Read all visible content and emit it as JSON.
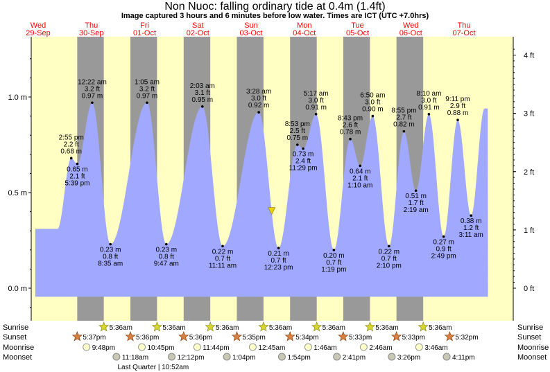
{
  "title": "Non Nuoc: falling  ordinary tide at 0.4m (1.4ft)",
  "subtitle": "Image captured 3 hours and 6 minutes before low water. Times are ICT (UTC +7.0hrs)",
  "colors": {
    "day": "#ffffc4",
    "night": "#999999",
    "tide": "#a0a8ff",
    "date_label": "#ff0000",
    "now_marker": "#e8d000"
  },
  "chart_data": {
    "type": "area",
    "title": "Non Nuoc: falling  ordinary tide at 0.4m (1.4ft)",
    "xlabel": "",
    "ylabel": "",
    "x_unit": "hours since Wed 29-Sep 00:00 ICT",
    "xlim": [
      -2.2,
      204
    ],
    "ylim": [
      -0.05,
      1.28
    ],
    "grid": false,
    "y_ticks_m": [
      {
        "value": 0.0,
        "label": "0.0 m"
      },
      {
        "value": 0.5,
        "label": "0.5 m"
      },
      {
        "value": 1.0,
        "label": "1.0 m"
      }
    ],
    "y_ticks_ft": [
      {
        "value": 0,
        "label": "0 ft"
      },
      {
        "value": 1,
        "label": "1 ft"
      },
      {
        "value": 2,
        "label": "2 ft"
      },
      {
        "value": 3,
        "label": "3 ft"
      },
      {
        "value": 4,
        "label": "4 ft"
      }
    ],
    "days": [
      {
        "hour": 0,
        "day": "Wed",
        "date": "29-Sep"
      },
      {
        "hour": 24,
        "day": "Thu",
        "date": "30-Sep"
      },
      {
        "hour": 48,
        "day": "Fri",
        "date": "01-Oct"
      },
      {
        "hour": 72,
        "day": "Sat",
        "date": "02-Oct"
      },
      {
        "hour": 96,
        "day": "Sun",
        "date": "03-Oct"
      },
      {
        "hour": 120,
        "day": "Mon",
        "date": "04-Oct"
      },
      {
        "hour": 144,
        "day": "Tue",
        "date": "05-Oct"
      },
      {
        "hour": 168,
        "day": "Wed",
        "date": "06-Oct"
      },
      {
        "hour": 192,
        "day": "Thu",
        "date": "07-Oct"
      }
    ],
    "nights": [
      [
        17.62,
        29.6
      ],
      [
        41.6,
        53.6
      ],
      [
        65.6,
        77.6
      ],
      [
        89.58,
        101.6
      ],
      [
        113.57,
        125.6
      ],
      [
        137.55,
        149.6
      ],
      [
        161.55,
        173.6
      ]
    ],
    "extremes": [
      {
        "hour": 14.92,
        "m": 0.68,
        "ft": "2.2 ft",
        "time": "2:55 pm",
        "type": "high",
        "label_side": "above"
      },
      {
        "hour": 17.65,
        "m": 0.65,
        "ft": "2.1 ft",
        "time": "5:39 pm",
        "type": "low",
        "label_side": "below"
      },
      {
        "hour": 24.37,
        "m": 0.97,
        "ft": "3.2 ft",
        "time": "12:22 am",
        "type": "high",
        "label_side": "above"
      },
      {
        "hour": 32.58,
        "m": 0.23,
        "ft": "0.8 ft",
        "time": "8:35 am",
        "type": "low",
        "label_side": "below"
      },
      {
        "hour": 49.08,
        "m": 0.97,
        "ft": "3.2 ft",
        "time": "1:05 am",
        "type": "high",
        "label_side": "above"
      },
      {
        "hour": 57.78,
        "m": 0.23,
        "ft": "0.8 ft",
        "time": "9:47 am",
        "type": "low",
        "label_side": "below"
      },
      {
        "hour": 74.05,
        "m": 0.95,
        "ft": "3.1 ft",
        "time": "2:03 am",
        "type": "high",
        "label_side": "above"
      },
      {
        "hour": 83.18,
        "m": 0.22,
        "ft": "0.7 ft",
        "time": "11:11 am",
        "type": "low",
        "label_side": "below"
      },
      {
        "hour": 99.47,
        "m": 0.92,
        "ft": "3.0 ft",
        "time": "3:28 am",
        "type": "high",
        "label_side": "above"
      },
      {
        "hour": 108.38,
        "m": 0.21,
        "ft": "0.7 ft",
        "time": "12:23 pm",
        "type": "low",
        "label_side": "below"
      },
      {
        "hour": 116.88,
        "m": 0.75,
        "ft": "2.5 ft",
        "time": "8:53 pm",
        "type": "high",
        "label_side": "above"
      },
      {
        "hour": 119.48,
        "m": 0.73,
        "ft": "2.4 ft",
        "time": "11:29 pm",
        "type": "low",
        "label_side": "below"
      },
      {
        "hour": 125.28,
        "m": 0.91,
        "ft": "3.0 ft",
        "time": "5:17 am",
        "type": "high",
        "label_side": "above"
      },
      {
        "hour": 133.32,
        "m": 0.2,
        "ft": "0.7 ft",
        "time": "1:19 pm",
        "type": "low",
        "label_side": "below"
      },
      {
        "hour": 140.72,
        "m": 0.78,
        "ft": "2.6 ft",
        "time": "8:43 pm",
        "type": "high",
        "label_side": "above"
      },
      {
        "hour": 145.17,
        "m": 0.64,
        "ft": "2.1 ft",
        "time": "1:10 am",
        "type": "low",
        "label_side": "below"
      },
      {
        "hour": 150.83,
        "m": 0.9,
        "ft": "3.0 ft",
        "time": "6:50 am",
        "type": "high",
        "label_side": "above"
      },
      {
        "hour": 158.17,
        "m": 0.22,
        "ft": "0.7 ft",
        "time": "2:10 pm",
        "type": "low",
        "label_side": "below"
      },
      {
        "hour": 164.92,
        "m": 0.82,
        "ft": "2.7 ft",
        "time": "8:55 pm",
        "type": "high",
        "label_side": "above"
      },
      {
        "hour": 170.32,
        "m": 0.51,
        "ft": "1.7 ft",
        "time": "2:19 am",
        "type": "low",
        "label_side": "below"
      },
      {
        "hour": 176.17,
        "m": 0.91,
        "ft": "3.0 ft",
        "time": "8:10 am",
        "type": "high",
        "label_side": "above"
      },
      {
        "hour": 182.82,
        "m": 0.27,
        "ft": "0.9 ft",
        "time": "2:49 pm",
        "type": "low",
        "label_side": "below"
      },
      {
        "hour": 189.18,
        "m": 0.88,
        "ft": "2.9 ft",
        "time": "9:11 pm",
        "type": "high",
        "label_side": "above"
      },
      {
        "hour": 195.18,
        "m": 0.38,
        "ft": "1.2 ft",
        "time": "3:11 am",
        "type": "low",
        "label_side": "below"
      }
    ],
    "current": {
      "hour": 105.3,
      "m": 0.4
    }
  },
  "astro": {
    "row_labels": [
      "Sunrise",
      "Sunset",
      "Moonrise",
      "Moonset"
    ],
    "sunrise": [
      {
        "hour": 29.6,
        "label": "5:36am"
      },
      {
        "hour": 53.6,
        "label": "5:36am"
      },
      {
        "hour": 77.6,
        "label": "5:36am"
      },
      {
        "hour": 101.6,
        "label": "5:36am"
      },
      {
        "hour": 125.6,
        "label": "5:36am"
      },
      {
        "hour": 149.6,
        "label": "5:36am"
      },
      {
        "hour": 173.6,
        "label": "5:36am"
      }
    ],
    "sunset": [
      {
        "hour": 17.62,
        "label": "5:37pm"
      },
      {
        "hour": 41.6,
        "label": "5:36pm"
      },
      {
        "hour": 65.6,
        "label": "5:36pm"
      },
      {
        "hour": 89.58,
        "label": "5:35pm"
      },
      {
        "hour": 113.57,
        "label": "5:34pm"
      },
      {
        "hour": 137.55,
        "label": "5:33pm"
      },
      {
        "hour": 161.55,
        "label": "5:33pm"
      },
      {
        "hour": 185.53,
        "label": "5:32pm"
      }
    ],
    "moonrise": [
      {
        "hour": 21.8,
        "label": "9:48pm"
      },
      {
        "hour": 46.75,
        "label": "10:45pm"
      },
      {
        "hour": 71.73,
        "label": "11:44pm"
      },
      {
        "hour": 96.75,
        "label": "12:45am"
      },
      {
        "hour": 121.77,
        "label": "1:46am"
      },
      {
        "hour": 146.77,
        "label": "2:46am"
      },
      {
        "hour": 171.77,
        "label": "3:46am"
      }
    ],
    "moonset": [
      {
        "hour": 35.3,
        "label": "11:18am"
      },
      {
        "hour": 60.2,
        "label": "12:12pm"
      },
      {
        "hour": 85.07,
        "label": "1:04pm"
      },
      {
        "hour": 109.9,
        "label": "1:54pm"
      },
      {
        "hour": 134.68,
        "label": "2:41pm"
      },
      {
        "hour": 159.43,
        "label": "3:26pm"
      },
      {
        "hour": 184.18,
        "label": "4:11pm"
      }
    ],
    "moon_phase": {
      "hour": 34.87,
      "label": "Last Quarter | 10:52am"
    }
  }
}
